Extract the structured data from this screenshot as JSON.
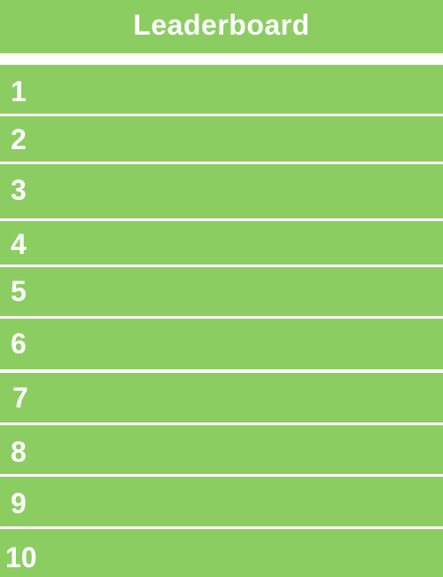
{
  "leaderboard": {
    "title": "Leaderboard",
    "colors": {
      "background": "#8ccd62",
      "divider": "#ffffff",
      "text": "#ffffff"
    },
    "ranks": [
      "1",
      "2",
      "3",
      "4",
      "5",
      "6",
      "7",
      "8",
      "9",
      "10"
    ]
  }
}
